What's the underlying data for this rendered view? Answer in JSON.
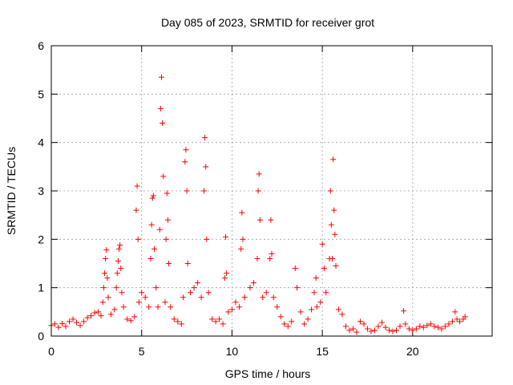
{
  "chart_data": {
    "type": "scatter",
    "title": "Day 085 of 2023, SRMTID for receiver grot",
    "xlabel": "GPS time / hours",
    "ylabel": "SRMTID / TECUs",
    "xlim": [
      0,
      24.4
    ],
    "ylim": [
      0,
      6
    ],
    "xticks": [
      0,
      5,
      10,
      15,
      20
    ],
    "yticks": [
      0,
      1,
      2,
      3,
      4,
      5,
      6
    ],
    "grid": true,
    "marker": "+",
    "color": "#ff0000",
    "series": [
      {
        "name": "SRMTID",
        "points": [
          [
            0.0,
            0.22
          ],
          [
            0.2,
            0.25
          ],
          [
            0.4,
            0.18
          ],
          [
            0.6,
            0.26
          ],
          [
            0.8,
            0.2
          ],
          [
            1.0,
            0.3
          ],
          [
            1.2,
            0.35
          ],
          [
            1.4,
            0.28
          ],
          [
            1.6,
            0.22
          ],
          [
            1.8,
            0.3
          ],
          [
            2.0,
            0.38
          ],
          [
            2.2,
            0.42
          ],
          [
            2.4,
            0.48
          ],
          [
            2.6,
            0.5
          ],
          [
            2.75,
            0.42
          ],
          [
            2.85,
            0.7
          ],
          [
            2.9,
            1.0
          ],
          [
            2.95,
            1.3
          ],
          [
            3.0,
            1.6
          ],
          [
            3.05,
            1.78
          ],
          [
            3.1,
            1.2
          ],
          [
            3.15,
            0.8
          ],
          [
            3.3,
            0.45
          ],
          [
            3.5,
            0.55
          ],
          [
            3.6,
            1.0
          ],
          [
            3.65,
            1.3
          ],
          [
            3.7,
            1.55
          ],
          [
            3.75,
            1.8
          ],
          [
            3.8,
            1.88
          ],
          [
            3.85,
            1.4
          ],
          [
            3.9,
            0.9
          ],
          [
            4.0,
            0.6
          ],
          [
            4.2,
            0.35
          ],
          [
            4.4,
            0.32
          ],
          [
            4.6,
            0.4
          ],
          [
            4.7,
            2.6
          ],
          [
            4.75,
            3.1
          ],
          [
            4.8,
            2.0
          ],
          [
            4.85,
            0.7
          ],
          [
            5.0,
            0.9
          ],
          [
            5.2,
            0.8
          ],
          [
            5.4,
            0.6
          ],
          [
            5.5,
            1.6
          ],
          [
            5.55,
            2.3
          ],
          [
            5.6,
            2.85
          ],
          [
            5.65,
            2.9
          ],
          [
            5.7,
            1.8
          ],
          [
            5.8,
            1.0
          ],
          [
            5.9,
            0.6
          ],
          [
            6.0,
            2.2
          ],
          [
            6.05,
            4.7
          ],
          [
            6.1,
            5.35
          ],
          [
            6.15,
            4.4
          ],
          [
            6.2,
            3.3
          ],
          [
            6.3,
            0.7
          ],
          [
            6.35,
            2.0
          ],
          [
            6.4,
            2.95
          ],
          [
            6.45,
            2.4
          ],
          [
            6.5,
            1.5
          ],
          [
            6.6,
            0.6
          ],
          [
            6.8,
            0.35
          ],
          [
            7.0,
            0.3
          ],
          [
            7.2,
            0.25
          ],
          [
            7.3,
            0.8
          ],
          [
            7.4,
            3.6
          ],
          [
            7.45,
            3.85
          ],
          [
            7.5,
            3.0
          ],
          [
            7.55,
            1.5
          ],
          [
            7.7,
            0.9
          ],
          [
            7.9,
            1.0
          ],
          [
            8.1,
            1.1
          ],
          [
            8.3,
            0.8
          ],
          [
            8.45,
            3.0
          ],
          [
            8.5,
            4.1
          ],
          [
            8.55,
            3.5
          ],
          [
            8.6,
            2.0
          ],
          [
            8.7,
            0.9
          ],
          [
            8.9,
            0.35
          ],
          [
            9.1,
            0.3
          ],
          [
            9.3,
            0.35
          ],
          [
            9.5,
            0.25
          ],
          [
            9.6,
            1.2
          ],
          [
            9.65,
            2.05
          ],
          [
            9.7,
            1.3
          ],
          [
            9.8,
            0.5
          ],
          [
            10.0,
            0.55
          ],
          [
            10.2,
            0.7
          ],
          [
            10.4,
            0.6
          ],
          [
            10.5,
            1.8
          ],
          [
            10.55,
            2.55
          ],
          [
            10.6,
            2.0
          ],
          [
            10.7,
            0.8
          ],
          [
            11.0,
            1.0
          ],
          [
            11.2,
            1.1
          ],
          [
            11.4,
            1.6
          ],
          [
            11.45,
            3.0
          ],
          [
            11.5,
            3.35
          ],
          [
            11.55,
            2.4
          ],
          [
            11.7,
            0.8
          ],
          [
            11.9,
            0.9
          ],
          [
            12.1,
            1.6
          ],
          [
            12.15,
            2.4
          ],
          [
            12.2,
            1.7
          ],
          [
            12.3,
            0.8
          ],
          [
            12.5,
            0.6
          ],
          [
            12.7,
            0.4
          ],
          [
            12.9,
            0.25
          ],
          [
            13.1,
            0.2
          ],
          [
            13.3,
            0.3
          ],
          [
            13.5,
            1.4
          ],
          [
            13.6,
            1.0
          ],
          [
            13.8,
            0.5
          ],
          [
            14.0,
            0.25
          ],
          [
            14.2,
            0.35
          ],
          [
            14.4,
            0.55
          ],
          [
            14.55,
            0.9
          ],
          [
            14.65,
            1.2
          ],
          [
            14.7,
            0.6
          ],
          [
            14.9,
            0.7
          ],
          [
            15.0,
            1.9
          ],
          [
            15.1,
            1.4
          ],
          [
            15.2,
            0.9
          ],
          [
            15.4,
            1.6
          ],
          [
            15.45,
            3.0
          ],
          [
            15.5,
            2.3
          ],
          [
            15.55,
            1.6
          ],
          [
            15.6,
            3.65
          ],
          [
            15.65,
            2.6
          ],
          [
            15.7,
            2.1
          ],
          [
            15.75,
            1.45
          ],
          [
            15.9,
            0.55
          ],
          [
            16.1,
            0.45
          ],
          [
            16.3,
            0.2
          ],
          [
            16.5,
            0.12
          ],
          [
            16.7,
            0.15
          ],
          [
            16.9,
            0.08
          ],
          [
            17.1,
            0.3
          ],
          [
            17.3,
            0.25
          ],
          [
            17.5,
            0.15
          ],
          [
            17.7,
            0.1
          ],
          [
            17.9,
            0.12
          ],
          [
            18.1,
            0.2
          ],
          [
            18.3,
            0.28
          ],
          [
            18.5,
            0.18
          ],
          [
            18.7,
            0.12
          ],
          [
            18.9,
            0.1
          ],
          [
            19.1,
            0.12
          ],
          [
            19.3,
            0.2
          ],
          [
            19.5,
            0.52
          ],
          [
            19.6,
            0.25
          ],
          [
            19.8,
            0.15
          ],
          [
            20.0,
            0.12
          ],
          [
            20.2,
            0.15
          ],
          [
            20.4,
            0.2
          ],
          [
            20.6,
            0.18
          ],
          [
            20.8,
            0.22
          ],
          [
            21.0,
            0.25
          ],
          [
            21.2,
            0.2
          ],
          [
            21.4,
            0.18
          ],
          [
            21.6,
            0.15
          ],
          [
            21.8,
            0.2
          ],
          [
            22.0,
            0.25
          ],
          [
            22.2,
            0.3
          ],
          [
            22.35,
            0.5
          ],
          [
            22.45,
            0.35
          ],
          [
            22.6,
            0.3
          ],
          [
            22.8,
            0.35
          ],
          [
            22.9,
            0.4
          ]
        ]
      }
    ]
  }
}
